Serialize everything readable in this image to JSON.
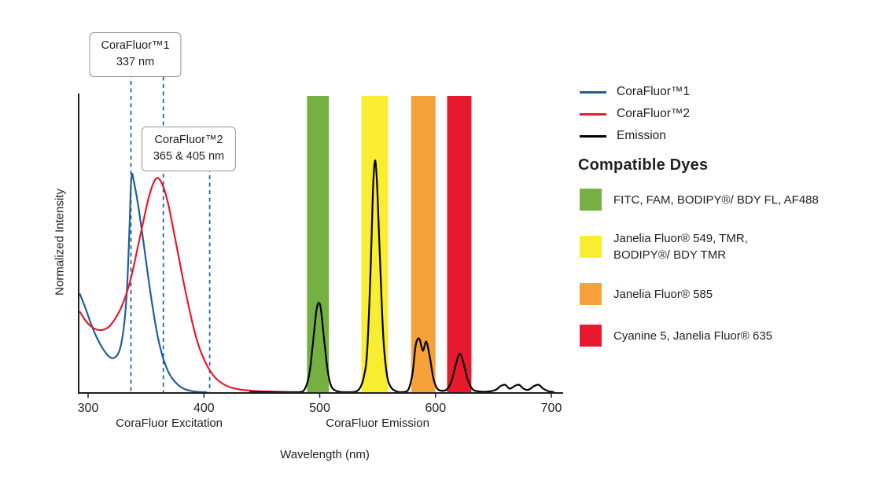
{
  "chart_data": {
    "type": "line",
    "title": "",
    "xlabel": "Wavelength (nm)",
    "ylabel": "Normalized Intensity",
    "xlim": [
      292,
      710
    ],
    "ylim": [
      0,
      1.05
    ],
    "x_ticks": [
      300,
      400,
      500,
      600,
      700
    ],
    "grid": false,
    "legend_position": "top-right",
    "dashed_line_color": "#2a64a5",
    "dashed_lines_nm": [
      337,
      365,
      405
    ],
    "axis_section_labels": [
      {
        "label": "CoraFluor Excitation",
        "center_nm": 370
      },
      {
        "label": "CoraFluor Emission",
        "center_nm": 550
      }
    ],
    "bands": [
      {
        "name": "green",
        "color": "#76b043",
        "range_nm": [
          489,
          508
        ]
      },
      {
        "name": "yellow",
        "color": "#f9ed32",
        "range_nm": [
          536,
          559
        ]
      },
      {
        "name": "orange",
        "color": "#f6a13a",
        "range_nm": [
          579,
          600
        ]
      },
      {
        "name": "red",
        "color": "#e8192c",
        "range_nm": [
          610,
          631
        ]
      }
    ],
    "series": [
      {
        "name": "CoraFluor™1",
        "color": "#215e9e",
        "points": [
          [
            293,
            0.33
          ],
          [
            298,
            0.28
          ],
          [
            303,
            0.225
          ],
          [
            308,
            0.18
          ],
          [
            313,
            0.145
          ],
          [
            318,
            0.12
          ],
          [
            322,
            0.115
          ],
          [
            326,
            0.13
          ],
          [
            329,
            0.17
          ],
          [
            332,
            0.26
          ],
          [
            334,
            0.38
          ],
          [
            336,
            0.58
          ],
          [
            337,
            0.7
          ],
          [
            338,
            0.735
          ],
          [
            339,
            0.72
          ],
          [
            341,
            0.68
          ],
          [
            344,
            0.61
          ],
          [
            348,
            0.5
          ],
          [
            352,
            0.385
          ],
          [
            356,
            0.28
          ],
          [
            360,
            0.19
          ],
          [
            364,
            0.125
          ],
          [
            368,
            0.08
          ],
          [
            372,
            0.05
          ],
          [
            377,
            0.027
          ],
          [
            382,
            0.013
          ],
          [
            388,
            0.005
          ],
          [
            395,
            0.001
          ],
          [
            402,
            0
          ]
        ]
      },
      {
        "name": "CoraFluor™2",
        "color": "#e8192c",
        "points": [
          [
            293,
            0.27
          ],
          [
            298,
            0.24
          ],
          [
            303,
            0.22
          ],
          [
            308,
            0.21
          ],
          [
            313,
            0.21
          ],
          [
            318,
            0.22
          ],
          [
            323,
            0.245
          ],
          [
            328,
            0.28
          ],
          [
            333,
            0.33
          ],
          [
            338,
            0.4
          ],
          [
            343,
            0.49
          ],
          [
            348,
            0.58
          ],
          [
            352,
            0.65
          ],
          [
            356,
            0.7
          ],
          [
            359,
            0.72
          ],
          [
            362,
            0.715
          ],
          [
            366,
            0.68
          ],
          [
            370,
            0.62
          ],
          [
            374,
            0.54
          ],
          [
            378,
            0.46
          ],
          [
            382,
            0.38
          ],
          [
            386,
            0.305
          ],
          [
            390,
            0.235
          ],
          [
            394,
            0.175
          ],
          [
            398,
            0.13
          ],
          [
            402,
            0.095
          ],
          [
            406,
            0.068
          ],
          [
            410,
            0.048
          ],
          [
            415,
            0.032
          ],
          [
            420,
            0.021
          ],
          [
            426,
            0.013
          ],
          [
            433,
            0.008
          ],
          [
            441,
            0.005
          ],
          [
            450,
            0.003
          ],
          [
            460,
            0.0015
          ],
          [
            472,
            0
          ]
        ]
      },
      {
        "name": "Emission",
        "color": "#000000",
        "points": [
          [
            440,
            0
          ],
          [
            470,
            0
          ],
          [
            482,
            0
          ],
          [
            487,
            0.01
          ],
          [
            491,
            0.06
          ],
          [
            494,
            0.16
          ],
          [
            497,
            0.27
          ],
          [
            499,
            0.3
          ],
          [
            501,
            0.28
          ],
          [
            504,
            0.17
          ],
          [
            507,
            0.07
          ],
          [
            510,
            0.02
          ],
          [
            514,
            0.005
          ],
          [
            520,
            0
          ],
          [
            528,
            0
          ],
          [
            534,
            0.01
          ],
          [
            538,
            0.05
          ],
          [
            541,
            0.14
          ],
          [
            544,
            0.42
          ],
          [
            546,
            0.68
          ],
          [
            548,
            0.78
          ],
          [
            550,
            0.66
          ],
          [
            552,
            0.45
          ],
          [
            555,
            0.18
          ],
          [
            558,
            0.06
          ],
          [
            561,
            0.02
          ],
          [
            565,
            0.005
          ],
          [
            570,
            0
          ],
          [
            576,
            0.005
          ],
          [
            580,
            0.06
          ],
          [
            583,
            0.16
          ],
          [
            586,
            0.18
          ],
          [
            589,
            0.14
          ],
          [
            592,
            0.17
          ],
          [
            595,
            0.12
          ],
          [
            598,
            0.05
          ],
          [
            601,
            0.015
          ],
          [
            605,
            0.005
          ],
          [
            610,
            0.01
          ],
          [
            614,
            0.04
          ],
          [
            618,
            0.1
          ],
          [
            621,
            0.13
          ],
          [
            624,
            0.1
          ],
          [
            628,
            0.04
          ],
          [
            632,
            0.01
          ],
          [
            637,
            0.003
          ],
          [
            645,
            0.002
          ],
          [
            652,
            0.008
          ],
          [
            656,
            0.02
          ],
          [
            660,
            0.025
          ],
          [
            664,
            0.012
          ],
          [
            668,
            0.02
          ],
          [
            672,
            0.025
          ],
          [
            676,
            0.012
          ],
          [
            680,
            0.008
          ],
          [
            685,
            0.02
          ],
          [
            689,
            0.025
          ],
          [
            693,
            0.012
          ],
          [
            697,
            0.004
          ],
          [
            702,
            0
          ]
        ]
      }
    ]
  },
  "callouts": [
    {
      "title": "CoraFluor™1",
      "value": "337 nm"
    },
    {
      "title": "CoraFluor™2",
      "value": "365 & 405 nm"
    }
  ],
  "legend": {
    "items": [
      {
        "label": "CoraFluor™1",
        "color": "#215e9e"
      },
      {
        "label": "CoraFluor™2",
        "color": "#e8192c"
      },
      {
        "label": "Emission",
        "color": "#000000"
      }
    ]
  },
  "compatible_dyes": {
    "heading": "Compatible Dyes",
    "items": [
      {
        "color": "#76b043",
        "label": "FITC, FAM, BODIPY®/ BDY FL, AF488"
      },
      {
        "color": "#f9ed32",
        "label": "Janelia Fluor® 549, TMR,\nBODIPY®/ BDY TMR"
      },
      {
        "color": "#f6a13a",
        "label": "Janelia Fluor® 585"
      },
      {
        "color": "#e8192c",
        "label": "Cyanine 5, Janelia Fluor® 635"
      }
    ]
  }
}
